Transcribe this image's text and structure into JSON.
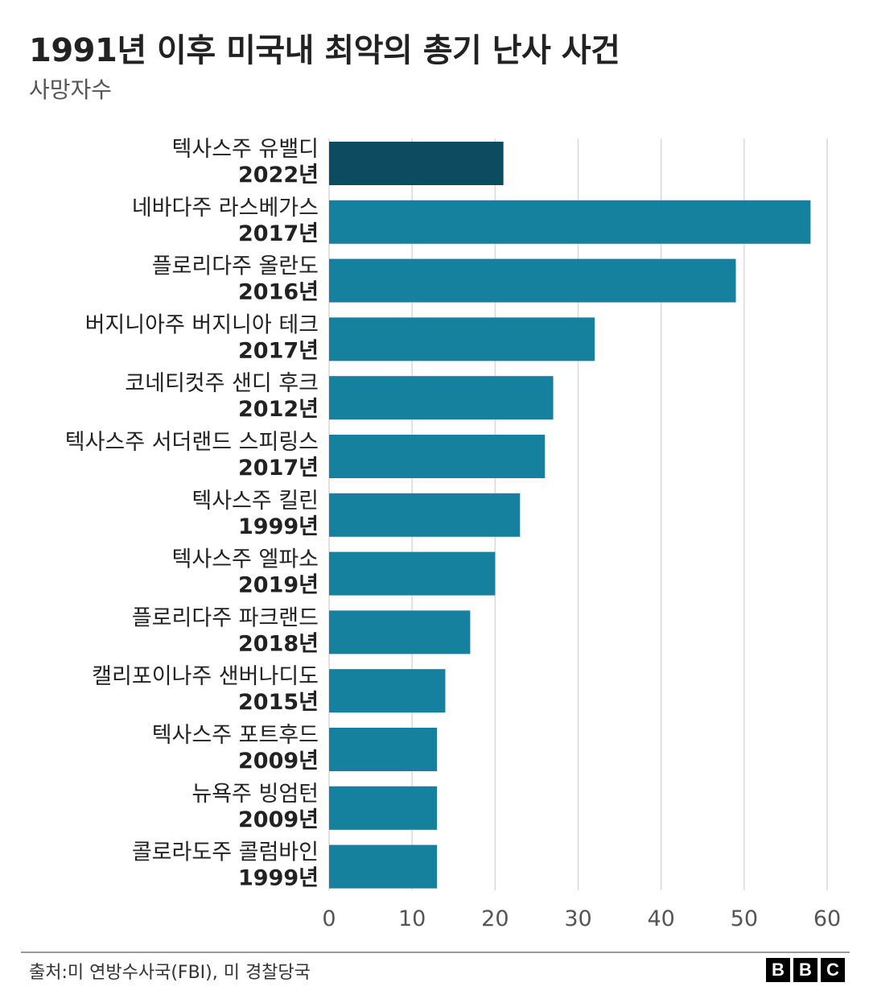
{
  "title": "1991년 이후 미국내 최악의 총기 난사 사건",
  "subtitle": "사망자수",
  "source": "출처:미 연방수사국(FBI), 미 경찰당국",
  "logo": [
    "B",
    "B",
    "C"
  ],
  "colors": {
    "highlight": "#0d4b60",
    "bar": "#16809f",
    "grid": "#d9d9d9"
  },
  "chart_data": {
    "type": "bar",
    "orientation": "horizontal",
    "categories": [
      {
        "name": "텍사스주 유밸디",
        "year": "2022년"
      },
      {
        "name": "네바다주 라스베가스",
        "year": "2017년"
      },
      {
        "name": "플로리다주 올란도",
        "year": "2016년"
      },
      {
        "name": "버지니아주 버지니아 테크",
        "year": "2017년"
      },
      {
        "name": "코네티컷주 샌디 후크",
        "year": "2012년"
      },
      {
        "name": "텍사스주 서더랜드 스피링스",
        "year": "2017년"
      },
      {
        "name": "텍사스주 킬린",
        "year": "1999년"
      },
      {
        "name": "텍사스주 엘파소",
        "year": "2019년"
      },
      {
        "name": "플로리다주 파크랜드",
        "year": "2018년"
      },
      {
        "name": "캘리포이나주 샌버나디도",
        "year": "2015년"
      },
      {
        "name": "텍사스주 포트후드",
        "year": "2009년"
      },
      {
        "name": "뉴욕주 빙엄턴",
        "year": "2009년"
      },
      {
        "name": "콜로라도주 콜럼바인",
        "year": "1999년"
      }
    ],
    "values": [
      21,
      58,
      49,
      32,
      27,
      26,
      23,
      20,
      17,
      14,
      13,
      13,
      13
    ],
    "highlight_index": 0,
    "xlim": [
      0,
      60
    ],
    "xticks": [
      "0",
      "10",
      "20",
      "30",
      "40",
      "50",
      "60"
    ],
    "grid": "vertical"
  }
}
